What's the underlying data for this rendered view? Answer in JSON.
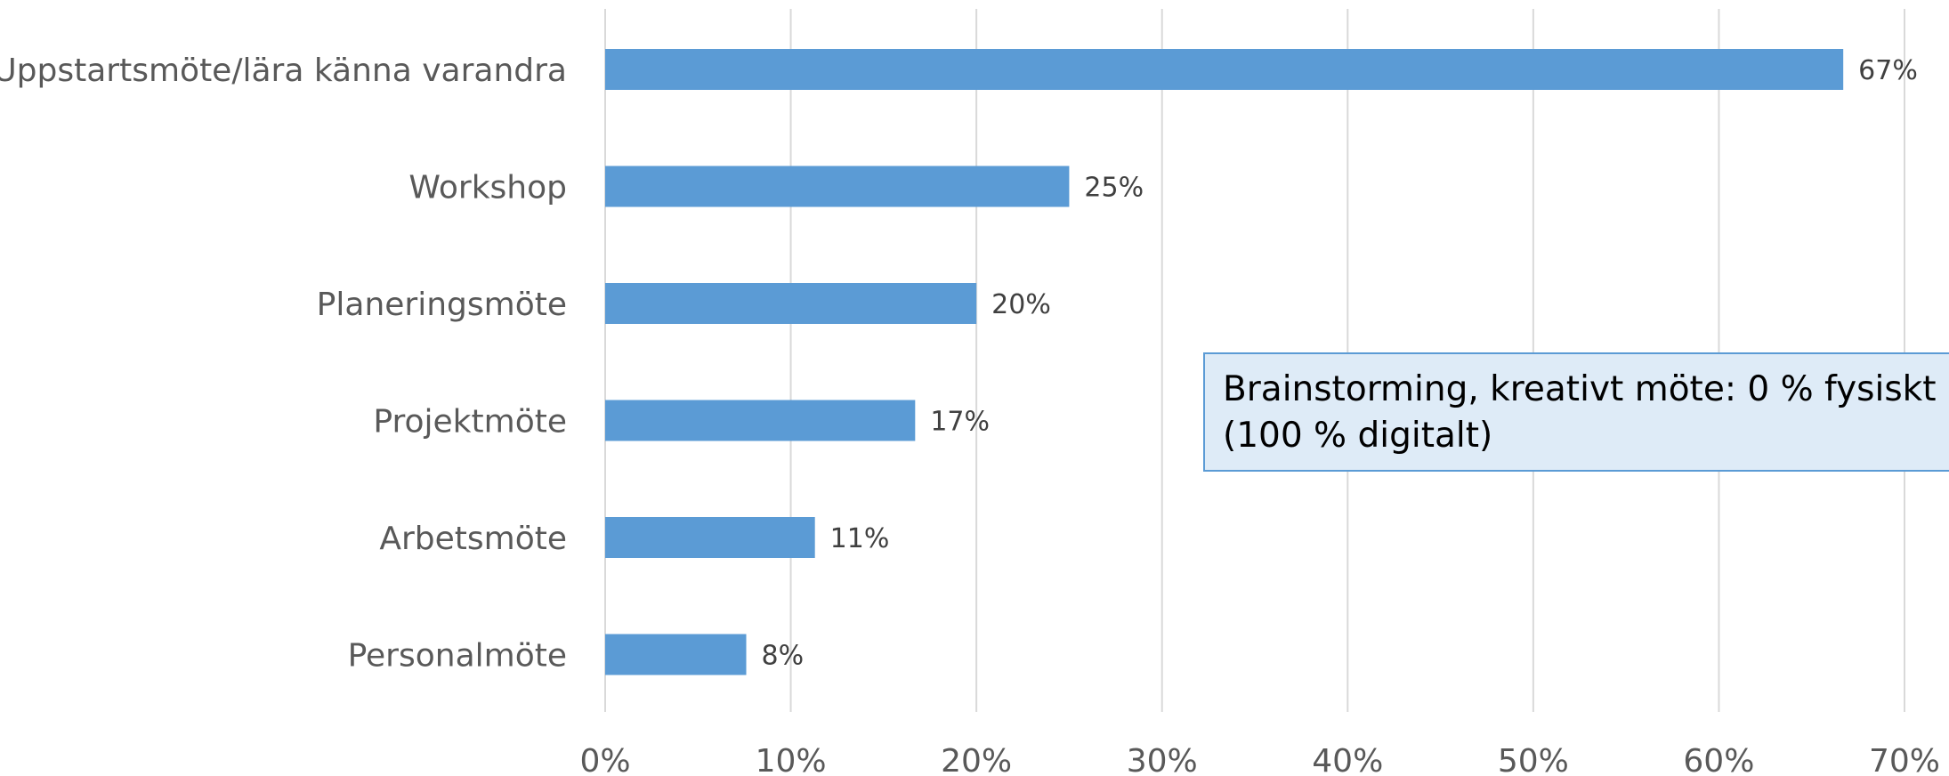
{
  "chart_data": {
    "type": "bar",
    "orientation": "horizontal",
    "title": "",
    "xlabel": "",
    "ylabel": "",
    "categories": [
      "Uppstartsmöte/lära känna varandra",
      "Workshop",
      "Planeringsmöte",
      "Projektmöte",
      "Arbetsmöte",
      "Personalmöte"
    ],
    "values": [
      67,
      25,
      20,
      17,
      11,
      8
    ],
    "bar_lengths_percent": [
      66.7,
      25,
      20,
      16.7,
      11.3,
      7.6
    ],
    "data_labels": [
      "67%",
      "25%",
      "20%",
      "17%",
      "11%",
      "8%"
    ],
    "xlim": [
      0,
      70
    ],
    "xticks": [
      0,
      10,
      20,
      30,
      40,
      50,
      60,
      70
    ],
    "xtick_labels": [
      "0%",
      "10%",
      "20%",
      "30%",
      "40%",
      "50%",
      "60%",
      "70%"
    ],
    "grid": "vertical",
    "legend": "none",
    "bar_color": "#5b9bd5",
    "grid_color": "#d9d9d9",
    "annotation": {
      "lines": [
        "Brainstorming, kreativt möte: 0 % fysiskt",
        "(100 % digitalt)"
      ],
      "background": "#deebf7",
      "border": "#5b9bd5"
    }
  }
}
